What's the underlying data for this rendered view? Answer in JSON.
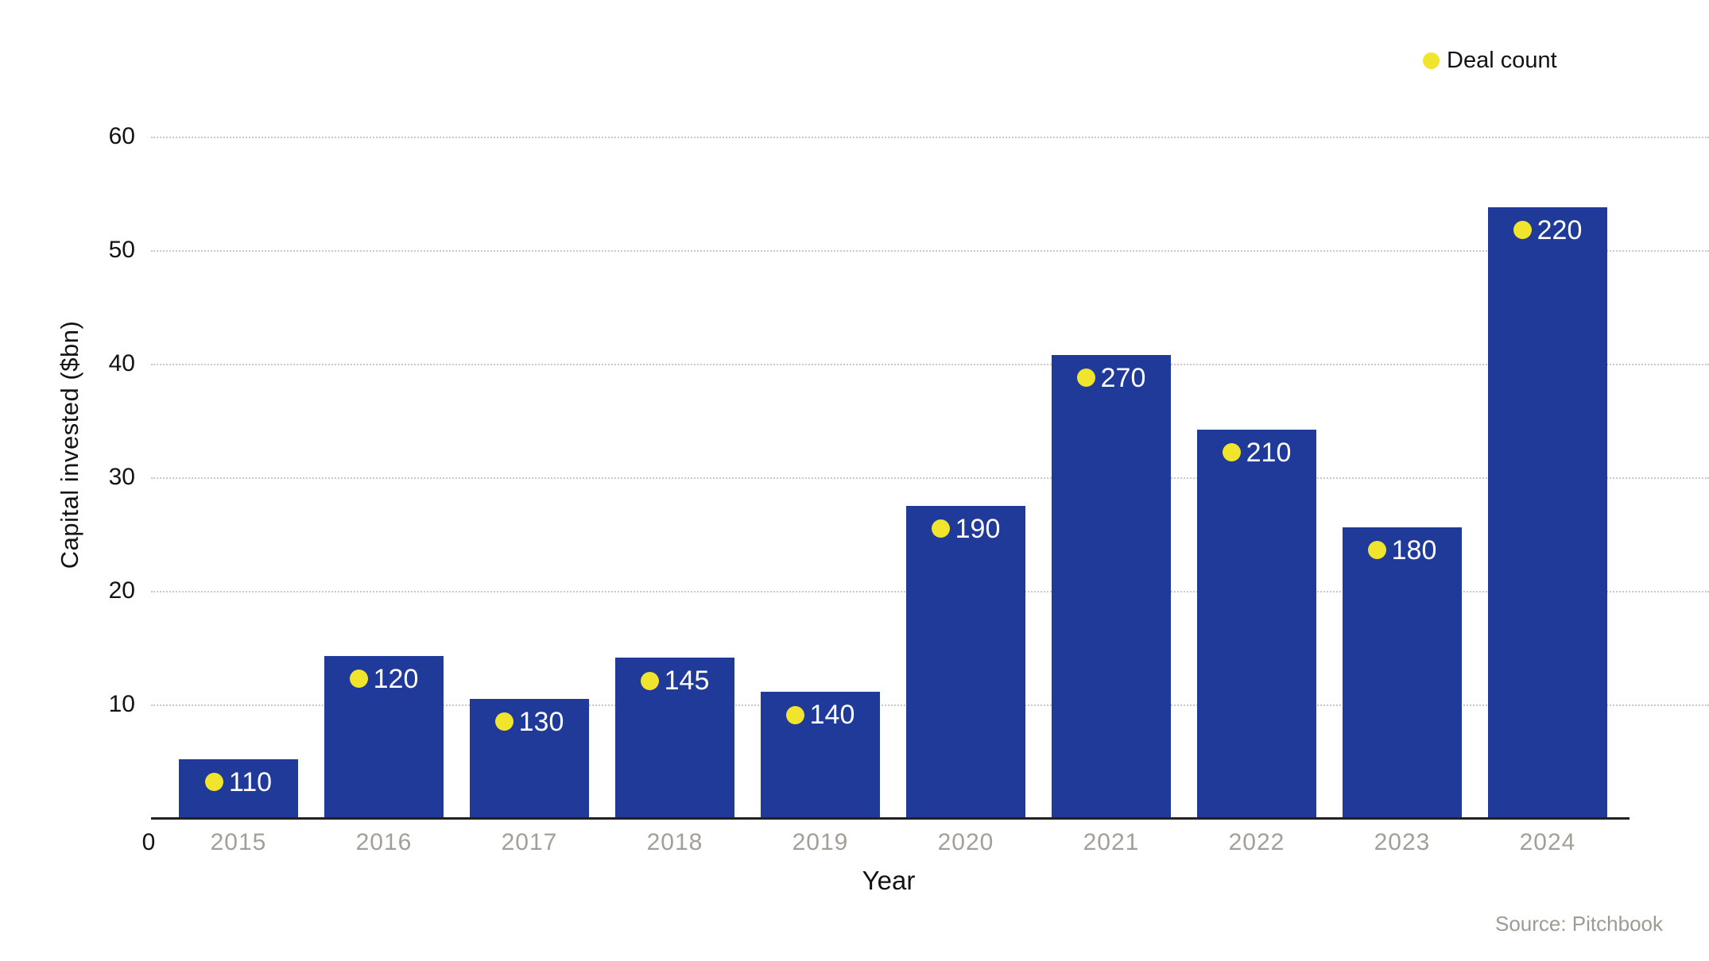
{
  "legend": {
    "label": "Deal count"
  },
  "axes": {
    "x_title": "Year",
    "y_title": "Capital invested ($bn)",
    "origin_label": "0",
    "y_ticks": [
      10,
      20,
      30,
      40,
      50,
      60
    ]
  },
  "source_note": "Source: Pitchbook",
  "colors": {
    "bar": "#1f3a98",
    "deal_dot": "#f0e52c",
    "value_label": "#ffffff",
    "tick_label": "#141414",
    "year_label": "#a49e98",
    "grid_line": "#c9c9c9",
    "axis_line": "#222222",
    "source_text": "#a09a94",
    "text": "#131313"
  },
  "chart_data": {
    "type": "bar",
    "title": "",
    "categories": [
      "2015",
      "2016",
      "2017",
      "2018",
      "2019",
      "2020",
      "2021",
      "2022",
      "2023",
      "2024"
    ],
    "series": [
      {
        "name": "Capital invested ($bn)",
        "type": "bar",
        "values": [
          5.2,
          14.3,
          10.5,
          14.1,
          11.1,
          27.5,
          40.8,
          34.2,
          25.6,
          53.8
        ]
      },
      {
        "name": "Deal count",
        "type": "dot-label",
        "values": [
          110,
          120,
          130,
          145,
          140,
          190,
          270,
          210,
          180,
          220
        ]
      }
    ],
    "xlabel": "Year",
    "ylabel": "Capital invested ($bn)",
    "ylim": [
      0,
      60
    ],
    "yticks": [
      0,
      10,
      20,
      30,
      40,
      50,
      60
    ],
    "grid": "horizontal-dotted",
    "legend_position": "top-right",
    "source": "Source: Pitchbook"
  }
}
